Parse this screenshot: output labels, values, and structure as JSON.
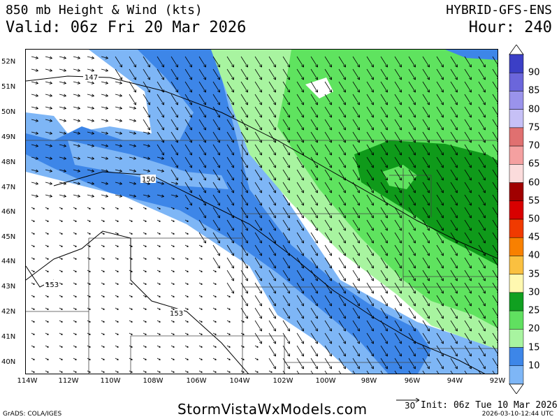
{
  "header": {
    "title": "850 mb Height & Wind (kts)",
    "valid": "Valid: 06z Fri 20 Mar 2026",
    "model": "HYBRID-GFS-ENS",
    "hour": "Hour: 240"
  },
  "map": {
    "lat_labels": [
      "52N",
      "51N",
      "50N",
      "49N",
      "48N",
      "47N",
      "46N",
      "45N",
      "44N",
      "43N",
      "42N",
      "41N",
      "40N"
    ],
    "lon_labels": [
      "114W",
      "112W",
      "110W",
      "108W",
      "106W",
      "104W",
      "102W",
      "100W",
      "98W",
      "96W",
      "94W",
      "92W"
    ],
    "contour_labels": [
      "147",
      "150",
      "153",
      "153"
    ],
    "wind_shading_colors": {
      "15": "#7eb6f6",
      "20": "#3d86e8",
      "25": "#a8f4a0",
      "30": "#5fe35f",
      "35": "#0f9a1a"
    }
  },
  "colorbar": {
    "labels": [
      "90",
      "85",
      "80",
      "75",
      "70",
      "65",
      "60",
      "55",
      "50",
      "45",
      "40",
      "35",
      "30",
      "25",
      "20",
      "15",
      "10"
    ],
    "colors": [
      "#3b3fc6",
      "#6b66db",
      "#9a93eb",
      "#c6c0f6",
      "#e07070",
      "#f4a0a0",
      "#fbdcdc",
      "#a00000",
      "#d80000",
      "#f03a00",
      "#f88000",
      "#fac040",
      "#fff8b0",
      "#10a020",
      "#60e060",
      "#a8f4a0",
      "#3d86e8",
      "#7eb6f6"
    ]
  },
  "footer": {
    "grads": "GrADS: COLA/IGES",
    "site": "StormVistaWxModels.com",
    "ref_vector": "30",
    "init": "Init: 06z Tue 10 Mar 2026",
    "stamp": "2026-03-10-12:44 UTC"
  }
}
